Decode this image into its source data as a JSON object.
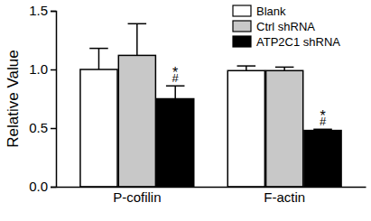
{
  "chart_data": {
    "type": "bar",
    "y_label": "Relative Value",
    "categories": [
      "P-cofilin",
      "F-actin"
    ],
    "series": [
      {
        "name": "Blank",
        "color": "#ffffff",
        "values": [
          1.0,
          0.99
        ],
        "errors": [
          0.18,
          0.04
        ]
      },
      {
        "name": "Ctrl shRNA",
        "color": "#c8c8c8",
        "values": [
          1.12,
          0.99
        ],
        "errors": [
          0.27,
          0.03
        ]
      },
      {
        "name": "ATP2C1 shRNA",
        "color": "#000000",
        "values": [
          0.75,
          0.48
        ],
        "errors": [
          0.11,
          0.01
        ]
      }
    ],
    "ylim": [
      0,
      1.5
    ],
    "yticks": [
      {
        "value": 0,
        "label": "0.0"
      },
      0.5,
      {
        "value": 1,
        "label": "1.0"
      },
      1.5
    ],
    "legend": "upper right",
    "annotations": [
      {
        "text": "*",
        "category": "P-cofilin",
        "series": "ATP2C1 shRNA"
      },
      {
        "text": "#",
        "category": "P-cofilin",
        "series": "ATP2C1 shRNA"
      },
      {
        "text": "*",
        "category": "F-actin",
        "series": "ATP2C1 shRNA"
      },
      {
        "text": "#",
        "category": "F-actin",
        "series": "ATP2C1 shRNA"
      }
    ]
  }
}
